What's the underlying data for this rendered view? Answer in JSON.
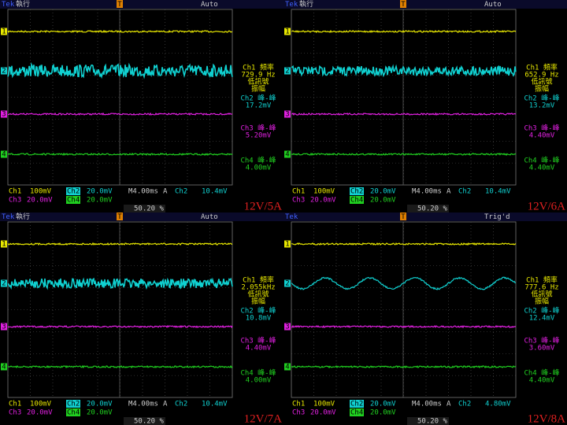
{
  "panels": [
    {
      "tek": "Tek",
      "status": "執行",
      "mode": "Auto",
      "trigger_marker": "T",
      "channel_markers": [
        "1",
        "2",
        "3",
        "4"
      ],
      "measurements": [
        {
          "title": "Ch1 頻率",
          "value": "729.9 Hz",
          "notes": [
            "低訊號",
            "振幅"
          ]
        },
        {
          "title": "Ch2 峰-峰",
          "value": "17.2mV"
        },
        {
          "title": "Ch3 峰-峰",
          "value": "5.20mV"
        },
        {
          "title": "Ch4 峰-峰",
          "value": "4.00mV"
        }
      ],
      "ch1": "Ch1",
      "ch1_scale": "100mV",
      "ch2": "Ch2",
      "ch2_scale": "20.0mV",
      "timebase": "M4.00ms",
      "trig_source": "A",
      "trig_ch": "Ch2",
      "trig_level": "10.4mV",
      "ch3": "Ch3",
      "ch3_scale": "20.0mV",
      "ch4": "Ch4",
      "ch4_scale": "20.0mV",
      "trig_pos": "50.20 %",
      "label": "12V/5A"
    },
    {
      "tek": "Tek",
      "status": "執行",
      "mode": "Auto",
      "trigger_marker": "T",
      "channel_markers": [
        "1",
        "2",
        "3",
        "4"
      ],
      "measurements": [
        {
          "title": "Ch1 頻率",
          "value": "652.9 Hz",
          "notes": [
            "低訊號",
            "振幅"
          ]
        },
        {
          "title": "Ch2 峰-峰",
          "value": "13.2mV"
        },
        {
          "title": "Ch3 峰-峰",
          "value": "4.40mV"
        },
        {
          "title": "Ch4 峰-峰",
          "value": "4.40mV"
        }
      ],
      "ch1": "Ch1",
      "ch1_scale": "100mV",
      "ch2": "Ch2",
      "ch2_scale": "20.0mV",
      "timebase": "M4.00ms",
      "trig_source": "A",
      "trig_ch": "Ch2",
      "trig_level": "10.4mV",
      "ch3": "Ch3",
      "ch3_scale": "20.0mV",
      "ch4": "Ch4",
      "ch4_scale": "20.0mV",
      "trig_pos": "50.20 %",
      "label": "12V/6A"
    },
    {
      "tek": "Tek",
      "status": "執行",
      "mode": "Auto",
      "trigger_marker": "T",
      "channel_markers": [
        "1",
        "2",
        "3",
        "4"
      ],
      "measurements": [
        {
          "title": "Ch1 頻率",
          "value": "2.055kHz",
          "notes": [
            "低訊號",
            "振幅"
          ]
        },
        {
          "title": "Ch2 峰-峰",
          "value": "10.8mV"
        },
        {
          "title": "Ch3 峰-峰",
          "value": "4.40mV"
        },
        {
          "title": "Ch4 峰-峰",
          "value": "4.00mV"
        }
      ],
      "ch1": "Ch1",
      "ch1_scale": "100mV",
      "ch2": "Ch2",
      "ch2_scale": "20.0mV",
      "timebase": "M4.00ms",
      "trig_source": "A",
      "trig_ch": "Ch2",
      "trig_level": "10.4mV",
      "ch3": "Ch3",
      "ch3_scale": "20.0mV",
      "ch4": "Ch4",
      "ch4_scale": "20.0mV",
      "trig_pos": "50.20 %",
      "label": "12V/7A"
    },
    {
      "tek": "Tek",
      "status": "",
      "mode": "Trig'd",
      "trigger_marker": "T",
      "channel_markers": [
        "1",
        "2",
        "3",
        "4"
      ],
      "measurements": [
        {
          "title": "Ch1 頻率",
          "value": "777.6 Hz",
          "notes": [
            "低訊號",
            "振幅"
          ]
        },
        {
          "title": "Ch2 峰-峰",
          "value": "12.4mV"
        },
        {
          "title": "Ch3 峰-峰",
          "value": "3.60mV"
        },
        {
          "title": "Ch4 峰-峰",
          "value": "4.40mV"
        }
      ],
      "ch1": "Ch1",
      "ch1_scale": "100mV",
      "ch2": "Ch2",
      "ch2_scale": "20.0mV",
      "timebase": "M4.00ms",
      "trig_source": "A",
      "trig_ch": "Ch2",
      "trig_level": "4.80mV",
      "ch3": "Ch3",
      "ch3_scale": "20.0mV",
      "ch4": "Ch4",
      "ch4_scale": "20.0mV",
      "trig_pos": "50.20 %",
      "label": "12V/8A"
    }
  ]
}
